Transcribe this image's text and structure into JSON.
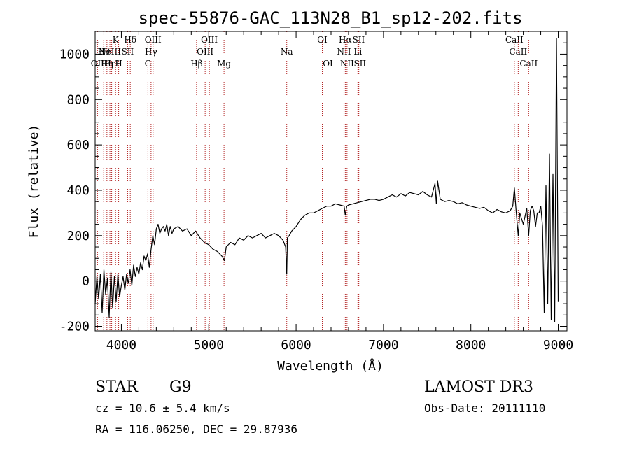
{
  "title": "spec-55876-GAC_113N28_B1_sp12-202.fits",
  "info": {
    "class_label": "STAR",
    "subclass": "G9",
    "survey": "LAMOST DR3",
    "cz": "cz = 10.6 ± 5.4 km/s",
    "obs_date": "Obs-Date: 20111110",
    "radec": "RA = 116.06250, DEC =  29.87936"
  },
  "colors": {
    "spectrum": "#000000",
    "lines": "#b22222",
    "axes": "#000000"
  },
  "chart_data": {
    "type": "line",
    "title": "spec-55876-GAC_113N28_B1_sp12-202.fits",
    "xlabel": "Wavelength (Å)",
    "ylabel": "Flux (relative)",
    "xlim": [
      3700,
      9100
    ],
    "ylim": [
      -220,
      1100
    ],
    "xticks": [
      4000,
      5000,
      6000,
      7000,
      8000,
      9000
    ],
    "yticks": [
      -200,
      0,
      200,
      400,
      600,
      800,
      1000
    ],
    "grid": false,
    "series": [
      {
        "x": [
          3700,
          3720,
          3740,
          3760,
          3780,
          3800,
          3820,
          3840,
          3860,
          3880,
          3900,
          3920,
          3940,
          3960,
          3980,
          4000,
          4020,
          4040,
          4060,
          4080,
          4100,
          4120,
          4140,
          4160,
          4180,
          4200,
          4220,
          4240,
          4260,
          4280,
          4300,
          4320,
          4340,
          4360,
          4380,
          4400,
          4420,
          4440,
          4460,
          4480,
          4500,
          4520,
          4540,
          4560,
          4580,
          4600,
          4650,
          4700,
          4750,
          4800,
          4850,
          4900,
          4950,
          5000,
          5050,
          5100,
          5150,
          5180,
          5200,
          5250,
          5300,
          5350,
          5400,
          5450,
          5500,
          5550,
          5600,
          5650,
          5700,
          5750,
          5800,
          5850,
          5880,
          5893,
          5900,
          5920,
          5950,
          6000,
          6050,
          6100,
          6150,
          6200,
          6250,
          6300,
          6350,
          6400,
          6450,
          6500,
          6550,
          6563,
          6580,
          6600,
          6650,
          6700,
          6750,
          6800,
          6850,
          6900,
          6950,
          7000,
          7050,
          7100,
          7150,
          7200,
          7250,
          7300,
          7350,
          7400,
          7450,
          7500,
          7550,
          7590,
          7605,
          7620,
          7650,
          7700,
          7750,
          7800,
          7850,
          7900,
          7950,
          8000,
          8050,
          8100,
          8150,
          8200,
          8250,
          8300,
          8350,
          8400,
          8450,
          8480,
          8498,
          8520,
          8542,
          8560,
          8600,
          8640,
          8662,
          8680,
          8700,
          8720,
          8740,
          8760,
          8780,
          8800,
          8820,
          8840,
          8860,
          8880,
          8900,
          8920,
          8940,
          8960,
          8980,
          9000
        ],
        "y": [
          -100,
          20,
          -80,
          30,
          -140,
          50,
          -60,
          10,
          -160,
          40,
          -120,
          20,
          -90,
          30,
          -70,
          -20,
          20,
          -40,
          30,
          -10,
          50,
          -20,
          70,
          20,
          60,
          30,
          80,
          50,
          110,
          90,
          120,
          60,
          140,
          200,
          160,
          230,
          250,
          210,
          230,
          240,
          220,
          250,
          200,
          240,
          210,
          230,
          240,
          220,
          230,
          200,
          220,
          190,
          170,
          160,
          140,
          130,
          110,
          90,
          150,
          170,
          160,
          190,
          180,
          200,
          190,
          200,
          210,
          190,
          200,
          210,
          200,
          180,
          150,
          30,
          190,
          200,
          220,
          240,
          270,
          290,
          300,
          300,
          310,
          320,
          330,
          330,
          340,
          335,
          330,
          290,
          330,
          335,
          340,
          345,
          350,
          355,
          360,
          360,
          355,
          360,
          370,
          380,
          370,
          385,
          375,
          390,
          385,
          380,
          395,
          380,
          370,
          430,
          340,
          440,
          360,
          350,
          355,
          350,
          340,
          345,
          335,
          330,
          325,
          320,
          325,
          310,
          300,
          315,
          305,
          300,
          310,
          330,
          410,
          300,
          200,
          300,
          250,
          320,
          200,
          310,
          330,
          310,
          240,
          300,
          300,
          330,
          240,
          -140,
          420,
          -100,
          560,
          -170,
          470,
          -180,
          1070,
          -90
        ]
      }
    ],
    "line_markers": [
      {
        "w": 3727,
        "label": "OII",
        "row": 2
      },
      {
        "w": 3798,
        "label": "Hθ",
        "row": 1
      },
      {
        "w": 3835,
        "label": "Hη",
        "row": 2
      },
      {
        "w": 3869,
        "label": "NeIII",
        "row": 1
      },
      {
        "w": 3889,
        "label": "HeI",
        "row": 2
      },
      {
        "w": 3934,
        "label": "K",
        "row": 0
      },
      {
        "w": 3969,
        "label": "H",
        "row": 2
      },
      {
        "w": 4072,
        "label": "SII",
        "row": 1
      },
      {
        "w": 4102,
        "label": "Hδ",
        "row": 0
      },
      {
        "w": 4304,
        "label": "G",
        "row": 2
      },
      {
        "w": 4340,
        "label": "Hγ",
        "row": 1
      },
      {
        "w": 4363,
        "label": "OIII",
        "row": 0
      },
      {
        "w": 4861,
        "label": "Hβ",
        "row": 2
      },
      {
        "w": 4959,
        "label": "OIII",
        "row": 1
      },
      {
        "w": 5007,
        "label": "OIII",
        "row": 0
      },
      {
        "w": 5175,
        "label": "Mg",
        "row": 2
      },
      {
        "w": 5893,
        "label": "Na",
        "row": 1
      },
      {
        "w": 6300,
        "label": "OI",
        "row": 0
      },
      {
        "w": 6364,
        "label": "OI",
        "row": 2
      },
      {
        "w": 6548,
        "label": "NII",
        "row": 1
      },
      {
        "w": 6563,
        "label": "Hα",
        "row": 0
      },
      {
        "w": 6583,
        "label": "NII",
        "row": 2
      },
      {
        "w": 6707,
        "label": "Li",
        "row": 1
      },
      {
        "w": 6716,
        "label": "SII",
        "row": 0
      },
      {
        "w": 6731,
        "label": "SII",
        "row": 2
      },
      {
        "w": 8498,
        "label": "CaII",
        "row": 0
      },
      {
        "w": 8542,
        "label": "CaII",
        "row": 1
      },
      {
        "w": 8662,
        "label": "CaII",
        "row": 2
      }
    ]
  }
}
